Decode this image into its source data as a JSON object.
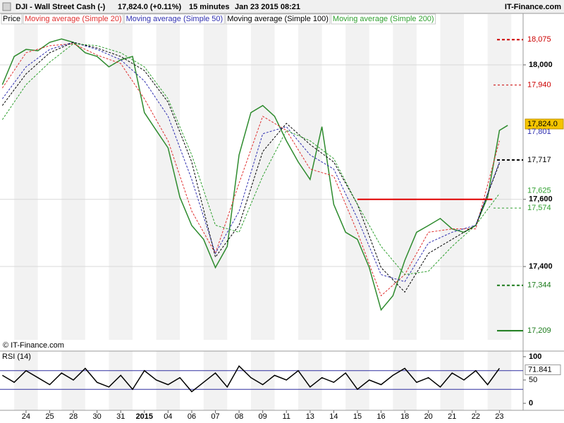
{
  "header": {
    "symbol": "DJI - Wall Street Cash (-)",
    "quote": "17,824.0 (+0.11%)",
    "interval": "15 minutes",
    "datetime": "Jan 23 2015 08:21",
    "brand": "IT-Finance.com"
  },
  "chart_data": [
    {
      "type": "line",
      "copyright": "© IT-Finance.com",
      "xlim": [
        -1.1,
        21.0
      ],
      "ylim": [
        17182,
        18151
      ],
      "yticks": [
        {
          "value": 17400,
          "label": "17,400"
        },
        {
          "value": 17600,
          "label": "17,600"
        },
        {
          "value": 18000,
          "label": "18,000"
        }
      ],
      "grid": true,
      "series": [
        {
          "name": "Price",
          "color": "#2e8b2e",
          "x": [
            -1,
            -0.5,
            0,
            0.5,
            1,
            1.5,
            2,
            2.5,
            3,
            3.5,
            4,
            4.5,
            5,
            5.5,
            6,
            6.5,
            7,
            7.5,
            8,
            8.5,
            9,
            9.5,
            10,
            10.5,
            11,
            11.5,
            12,
            12.5,
            13,
            13.5,
            14,
            14.5,
            15,
            15.5,
            16,
            16.5,
            17,
            17.5,
            18,
            18.5,
            19,
            19.5,
            20,
            20.35
          ],
          "values": [
            17941,
            18025,
            18046,
            18042,
            18067,
            18077,
            18067,
            18036,
            18025,
            17994,
            18015,
            18025,
            17858,
            17805,
            17753,
            17606,
            17522,
            17481,
            17397,
            17460,
            17732,
            17858,
            17879,
            17847,
            17774,
            17711,
            17659,
            17816,
            17585,
            17502,
            17481,
            17397,
            17271,
            17313,
            17418,
            17502,
            17522,
            17543,
            17512,
            17502,
            17522,
            17606,
            17805,
            17820
          ]
        },
        {
          "name": "Moving average (Simple 20)",
          "color": "#e03030",
          "x": [
            -1,
            0,
            1,
            2,
            3,
            4,
            5,
            6,
            7,
            8,
            9,
            10,
            11,
            12,
            13,
            14,
            15,
            16,
            17,
            18,
            19,
            20
          ],
          "values": [
            17931,
            18036,
            18057,
            18063,
            18029,
            18004,
            17899,
            17774,
            17565,
            17439,
            17648,
            17847,
            17805,
            17690,
            17669,
            17502,
            17313,
            17376,
            17502,
            17512,
            17512,
            17774
          ]
        },
        {
          "name": "Moving average (Simple 50)",
          "color": "#3030b0",
          "x": [
            -1,
            0,
            1,
            2,
            3,
            4,
            5,
            6,
            7,
            8,
            9,
            10,
            11,
            12,
            13,
            14,
            15,
            16,
            17,
            18,
            19,
            20
          ],
          "values": [
            17899,
            17994,
            18046,
            18067,
            18046,
            18015,
            17952,
            17847,
            17659,
            17439,
            17564,
            17795,
            17816,
            17732,
            17690,
            17543,
            17376,
            17355,
            17470,
            17502,
            17523,
            17711
          ]
        },
        {
          "name": "Moving average (Simple 100)",
          "color": "#000000",
          "x": [
            -1,
            0,
            1,
            2,
            3,
            4,
            5,
            6,
            7,
            8,
            9,
            10,
            11,
            12,
            13,
            14,
            15,
            16,
            17,
            18,
            19,
            20
          ],
          "values": [
            17879,
            17973,
            18036,
            18067,
            18050,
            18025,
            17983,
            17889,
            17711,
            17428,
            17523,
            17742,
            17826,
            17763,
            17711,
            17585,
            17397,
            17324,
            17439,
            17481,
            17523,
            17707
          ]
        },
        {
          "name": "Moving average (Simple 200)",
          "color": "#30a030",
          "x": [
            -1,
            0,
            1,
            2,
            3,
            4,
            5,
            6,
            7,
            8,
            9,
            10,
            11,
            12,
            13,
            14,
            15,
            16,
            17,
            18,
            19,
            20
          ],
          "values": [
            17837,
            17941,
            18008,
            18063,
            18057,
            18036,
            17994,
            17899,
            17732,
            17523,
            17502,
            17669,
            17805,
            17774,
            17721,
            17585,
            17460,
            17376,
            17386,
            17460,
            17523,
            17617
          ]
        }
      ],
      "hline": {
        "value": 17600,
        "from": 14,
        "to": 19.7,
        "color": "#e00000"
      },
      "levels": [
        {
          "value": 18075,
          "label": "18,075",
          "color": "#cc0000",
          "style": "dashed"
        },
        {
          "value": 17940,
          "label": "17,940",
          "color": "#cc0000",
          "style": "thin"
        },
        {
          "value": 17824,
          "label": "17,824.0",
          "color": "#000000",
          "style": "box"
        },
        {
          "value": 17801,
          "label": "17,801",
          "color": "#3030b0",
          "style": "none"
        },
        {
          "value": 17717,
          "label": "17,717",
          "color": "#000000",
          "style": "dashed"
        },
        {
          "value": 17625,
          "label": "17,625",
          "color": "#30a030",
          "style": "none"
        },
        {
          "value": 17574,
          "label": "17,574",
          "color": "#30a030",
          "style": "thin"
        },
        {
          "value": 17344,
          "label": "17,344",
          "color": "#1a7a1a",
          "style": "dashed"
        },
        {
          "value": 17209,
          "label": "17,209",
          "color": "#1a7a1a",
          "style": "solid"
        }
      ]
    },
    {
      "type": "line",
      "title": "RSI (14)",
      "xlim": [
        -1.1,
        21.0
      ],
      "ylim": [
        -15,
        112
      ],
      "yticks": [
        0,
        50,
        100
      ],
      "bands": [
        30,
        70
      ],
      "band_color": "#3030a0",
      "current": {
        "value": 71.841,
        "label": "71.841"
      },
      "xticks": [
        {
          "value": 0,
          "label": "24"
        },
        {
          "value": 1,
          "label": "25"
        },
        {
          "value": 2,
          "label": "28"
        },
        {
          "value": 3,
          "label": "30"
        },
        {
          "value": 4,
          "label": "31"
        },
        {
          "value": 5,
          "label": "2015"
        },
        {
          "value": 6,
          "label": "04"
        },
        {
          "value": 7,
          "label": "06"
        },
        {
          "value": 8,
          "label": "07"
        },
        {
          "value": 9,
          "label": "08"
        },
        {
          "value": 10,
          "label": "09"
        },
        {
          "value": 11,
          "label": "11"
        },
        {
          "value": 12,
          "label": "13"
        },
        {
          "value": 13,
          "label": "14"
        },
        {
          "value": 14,
          "label": "15"
        },
        {
          "value": 15,
          "label": "16"
        },
        {
          "value": 16,
          "label": "18"
        },
        {
          "value": 17,
          "label": "20"
        },
        {
          "value": 18,
          "label": "21"
        },
        {
          "value": 19,
          "label": "22"
        },
        {
          "value": 20,
          "label": "23"
        }
      ],
      "series": [
        {
          "color": "#000000",
          "x": [
            -1,
            -0.5,
            0,
            0.5,
            1,
            1.5,
            2,
            2.5,
            3,
            3.5,
            4,
            4.5,
            5,
            5.5,
            6,
            6.5,
            7,
            7.5,
            8,
            8.5,
            9,
            9.5,
            10,
            10.5,
            11,
            11.5,
            12,
            12.5,
            13,
            13.5,
            14,
            14.5,
            15,
            15.5,
            16,
            16.5,
            17,
            17.5,
            18,
            18.5,
            19,
            19.5,
            20
          ],
          "values": [
            60,
            45,
            70,
            55,
            40,
            65,
            50,
            75,
            45,
            35,
            60,
            30,
            70,
            50,
            40,
            55,
            25,
            45,
            65,
            35,
            80,
            55,
            40,
            60,
            50,
            70,
            35,
            55,
            45,
            65,
            30,
            50,
            40,
            60,
            75,
            45,
            55,
            35,
            65,
            50,
            70,
            40,
            75
          ]
        }
      ]
    }
  ]
}
